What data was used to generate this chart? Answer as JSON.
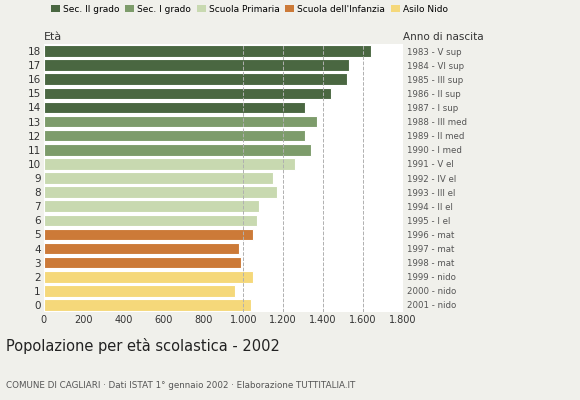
{
  "ages": [
    18,
    17,
    16,
    15,
    14,
    13,
    12,
    11,
    10,
    9,
    8,
    7,
    6,
    5,
    4,
    3,
    2,
    1,
    0
  ],
  "values": [
    1640,
    1530,
    1520,
    1440,
    1310,
    1370,
    1310,
    1340,
    1260,
    1150,
    1170,
    1080,
    1070,
    1050,
    980,
    990,
    1050,
    960,
    1040
  ],
  "right_labels": [
    "1983 - V sup",
    "1984 - VI sup",
    "1985 - III sup",
    "1986 - II sup",
    "1987 - I sup",
    "1988 - III med",
    "1989 - II med",
    "1990 - I med",
    "1991 - V el",
    "1992 - IV el",
    "1993 - III el",
    "1994 - II el",
    "1995 - I el",
    "1996 - mat",
    "1997 - mat",
    "1998 - mat",
    "1999 - nido",
    "2000 - nido",
    "2001 - nido"
  ],
  "colors": {
    "18": "#4a6741",
    "17": "#4a6741",
    "16": "#4a6741",
    "15": "#4a6741",
    "14": "#4a6741",
    "13": "#7d9c6b",
    "12": "#7d9c6b",
    "11": "#7d9c6b",
    "10": "#c8d9b0",
    "9": "#c8d9b0",
    "8": "#c8d9b0",
    "7": "#c8d9b0",
    "6": "#c8d9b0",
    "5": "#cc7a38",
    "4": "#cc7a38",
    "3": "#cc7a38",
    "2": "#f5d87a",
    "1": "#f5d87a",
    "0": "#f5d87a"
  },
  "legend_labels": [
    "Sec. II grado",
    "Sec. I grado",
    "Scuola Primaria",
    "Scuola dell'Infanzia",
    "Asilo Nido"
  ],
  "legend_colors": [
    "#4a6741",
    "#7d9c6b",
    "#c8d9b0",
    "#cc7a38",
    "#f5d87a"
  ],
  "title": "Popolazione per età scolastica - 2002",
  "subtitle": "COMUNE DI CAGLIARI · Dati ISTAT 1° gennaio 2002 · Elaborazione TUTTITALIA.IT",
  "xlabel_eta": "Età",
  "xlabel_anno": "Anno di nascita",
  "xlim": [
    0,
    1800
  ],
  "xticks": [
    0,
    200,
    400,
    600,
    800,
    1000,
    1200,
    1400,
    1600,
    1800
  ],
  "xtick_labels": [
    "0",
    "200",
    "400",
    "600",
    "800",
    "1.000",
    "1.200",
    "1.400",
    "1.600",
    "1.800"
  ],
  "bg_color": "#f0f0eb",
  "plot_bg_color": "#ffffff",
  "dashed_lines": [
    1000,
    1200,
    1400,
    1600
  ]
}
